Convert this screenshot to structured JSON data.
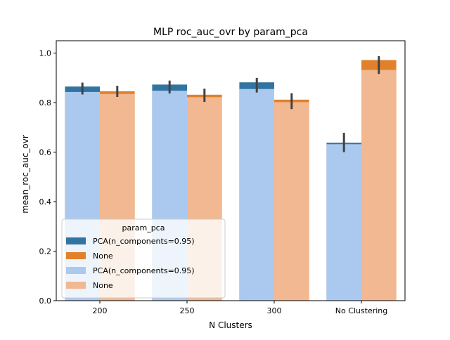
{
  "chart_data": {
    "type": "bar",
    "title": "MLP roc_auc_ovr by param_pca",
    "xlabel": "N Clusters",
    "ylabel": "mean_roc_auc_ovr",
    "categories": [
      "200",
      "250",
      "300",
      "No Clustering"
    ],
    "ylim": [
      0,
      1.05
    ],
    "yticks": [
      "0.0",
      "0.2",
      "0.4",
      "0.6",
      "0.8",
      "1.0"
    ],
    "grid": false,
    "legend": {
      "title": "param_pca",
      "placement": "lower-left",
      "entries": [
        "PCA(n_components=0.95)",
        "None",
        "PCA(n_components=0.95)",
        "None"
      ]
    },
    "colors": {
      "dark_blue": "#3274a1",
      "dark_orange": "#e1812c",
      "light_blue": "#abc9ee",
      "light_orange": "#f1b891",
      "errorbar": "#424242"
    },
    "series": [
      {
        "name": "PCA(n_components=0.95)",
        "style": "dark",
        "values": [
          0.865,
          0.873,
          0.882,
          0.638
        ],
        "ci_low": [
          0.833,
          0.837,
          0.841,
          0.6
        ],
        "ci_high": [
          0.881,
          0.889,
          0.9,
          0.678
        ]
      },
      {
        "name": "None",
        "style": "dark",
        "values": [
          0.846,
          0.832,
          0.812,
          0.972
        ],
        "ci_low": [
          0.823,
          0.803,
          0.774,
          0.916
        ],
        "ci_high": [
          0.868,
          0.856,
          0.838,
          0.988
        ]
      },
      {
        "name": "PCA(n_components=0.95)",
        "style": "light",
        "values": [
          0.843,
          0.848,
          0.855,
          0.632
        ]
      },
      {
        "name": "None",
        "style": "light",
        "values": [
          0.835,
          0.822,
          0.802,
          0.932
        ]
      }
    ]
  }
}
